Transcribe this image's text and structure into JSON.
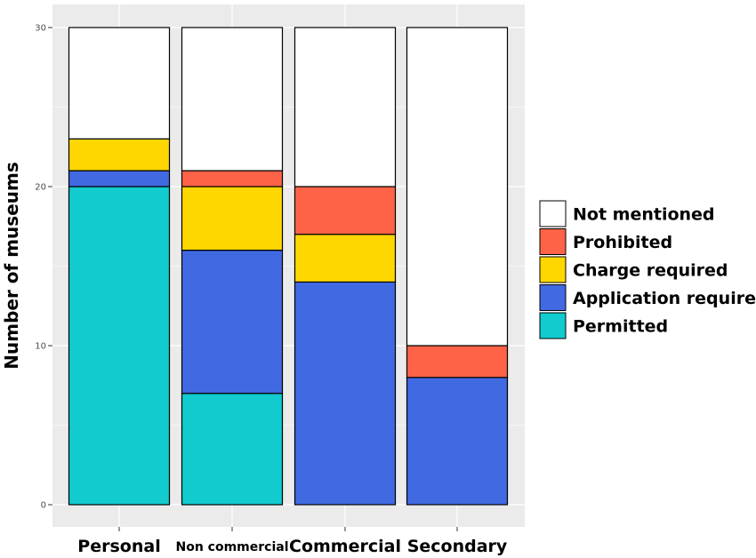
{
  "chart_data": {
    "type": "bar",
    "stacked": true,
    "categories": [
      "Personal",
      "Non commercial",
      "Commercial",
      "Secondary"
    ],
    "series": [
      {
        "name": "Permitted",
        "color": "#11CBCF",
        "values": [
          20,
          7,
          0,
          0
        ]
      },
      {
        "name": "Application required",
        "color": "#4169E1",
        "values": [
          1,
          9,
          14,
          8
        ]
      },
      {
        "name": "Charge required",
        "color": "#FFD700",
        "values": [
          2,
          4,
          3,
          0
        ]
      },
      {
        "name": "Prohibited",
        "color": "#FF6347",
        "values": [
          0,
          1,
          3,
          2
        ]
      },
      {
        "name": "Not mentioned",
        "color": "#FFFFFF",
        "values": [
          7,
          9,
          10,
          20
        ]
      }
    ],
    "legend_order": [
      "Not mentioned",
      "Prohibited",
      "Charge required",
      "Application required",
      "Permitted"
    ],
    "xlabel": "",
    "ylabel": "Number of museums",
    "ylim": [
      0,
      30
    ],
    "yticks": [
      0,
      10,
      20,
      30
    ],
    "grid": true,
    "legend_position": "right",
    "panel_background": "#EBEBEB"
  }
}
